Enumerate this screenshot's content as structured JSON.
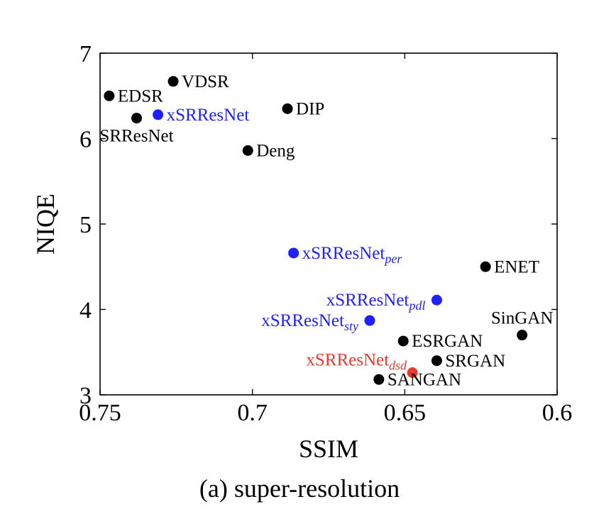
{
  "caption": "(a) super-resolution",
  "chart_data": {
    "type": "scatter",
    "title": "",
    "xlabel": "SSIM",
    "ylabel": "NIQE",
    "xlim": [
      0.75,
      0.6
    ],
    "ylim": [
      3,
      7
    ],
    "x_reversed": true,
    "grid": false,
    "x_ticks": [
      {
        "value": 0.75,
        "label": "0.75"
      },
      {
        "value": 0.7,
        "label": "0.7"
      },
      {
        "value": 0.65,
        "label": "0.65"
      },
      {
        "value": 0.6,
        "label": "0.6"
      }
    ],
    "y_ticks": [
      {
        "value": 3,
        "label": "3"
      },
      {
        "value": 4,
        "label": "4"
      },
      {
        "value": 5,
        "label": "5"
      },
      {
        "value": 6,
        "label": "6"
      },
      {
        "value": 7,
        "label": "7"
      }
    ],
    "colors": {
      "baseline": "#000000",
      "ours": "#1f1fff",
      "highlight": "#e83a2e"
    },
    "points": [
      {
        "label": "EDSR",
        "sub": "",
        "x": 0.747,
        "y": 6.5,
        "color": "#000000",
        "anchor": "right"
      },
      {
        "label": "VDSR",
        "sub": "",
        "x": 0.726,
        "y": 6.67,
        "color": "#000000",
        "anchor": "right"
      },
      {
        "label": "xSRResNet",
        "sub": "",
        "x": 0.731,
        "y": 6.28,
        "color": "#1f1fff",
        "anchor": "right"
      },
      {
        "label": "SRResNet",
        "sub": "",
        "x": 0.738,
        "y": 6.24,
        "color": "#000000",
        "anchor": "below"
      },
      {
        "label": "DIP",
        "sub": "",
        "x": 0.6885,
        "y": 6.35,
        "color": "#000000",
        "anchor": "right"
      },
      {
        "label": "Deng",
        "sub": "",
        "x": 0.7015,
        "y": 5.86,
        "color": "#000000",
        "anchor": "right"
      },
      {
        "label": "xSRResNet",
        "sub": "per",
        "x": 0.6865,
        "y": 4.66,
        "color": "#1f1fff",
        "anchor": "right"
      },
      {
        "label": "ENET",
        "sub": "",
        "x": 0.6235,
        "y": 4.5,
        "color": "#000000",
        "anchor": "right"
      },
      {
        "label": "xSRResNet",
        "sub": "pdl",
        "x": 0.6395,
        "y": 4.11,
        "color": "#1f1fff",
        "anchor": "left"
      },
      {
        "label": "xSRResNet",
        "sub": "sty",
        "x": 0.6615,
        "y": 3.87,
        "color": "#1f1fff",
        "anchor": "left"
      },
      {
        "label": "SinGAN",
        "sub": "",
        "x": 0.6115,
        "y": 3.7,
        "color": "#000000",
        "anchor": "above"
      },
      {
        "label": "ESRGAN",
        "sub": "",
        "x": 0.6505,
        "y": 3.63,
        "color": "#000000",
        "anchor": "right"
      },
      {
        "label": "SRGAN",
        "sub": "",
        "x": 0.6395,
        "y": 3.4,
        "color": "#000000",
        "anchor": "right"
      },
      {
        "label": "xSRResNet",
        "sub": "dsd",
        "x": 0.6475,
        "y": 3.26,
        "color": "#e83a2e",
        "anchor": "above-left"
      },
      {
        "label": "SANGAN",
        "sub": "",
        "x": 0.6585,
        "y": 3.18,
        "color": "#000000",
        "anchor": "right"
      }
    ]
  }
}
